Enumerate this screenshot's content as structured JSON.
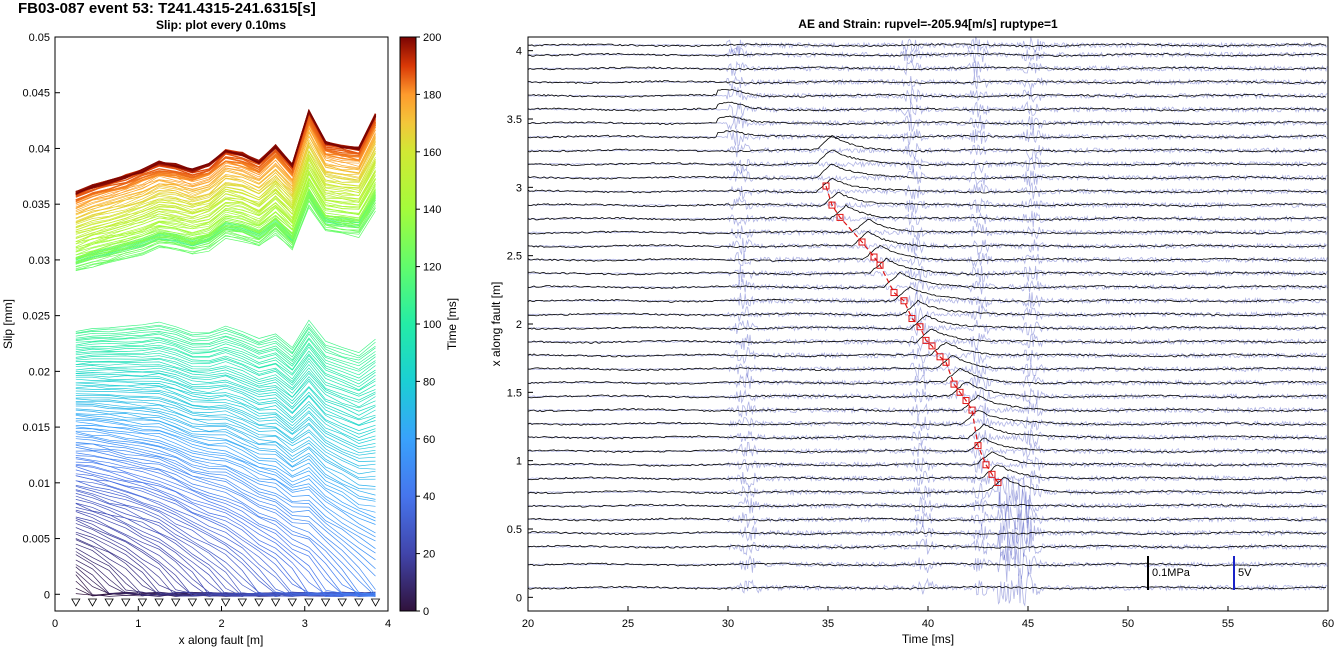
{
  "figure_title": "FB03-087 event 53: T241.4315-241.6315[s]",
  "chart_data": [
    {
      "type": "line",
      "title": "Slip: plot every 0.10ms",
      "xlabel": "x along fault [m]",
      "ylabel": "Slip [mm]",
      "xlim": [
        0,
        4
      ],
      "ylim": [
        -0.0015,
        0.05
      ],
      "xticks": [
        "0",
        "1",
        "2",
        "3",
        "4"
      ],
      "yticks": [
        "0",
        "0.005",
        "0.01",
        "0.015",
        "0.02",
        "0.025",
        "0.03",
        "0.035",
        "0.04",
        "0.045",
        "0.05"
      ],
      "grid": false,
      "x": [
        0.25,
        0.45,
        0.65,
        0.85,
        1.05,
        1.25,
        1.45,
        1.65,
        1.85,
        2.05,
        2.25,
        2.45,
        2.65,
        2.85,
        3.05,
        3.25,
        3.45,
        3.65,
        3.85
      ],
      "final_slip": [
        0.036,
        0.0366,
        0.037,
        0.0375,
        0.038,
        0.0387,
        0.0385,
        0.038,
        0.0385,
        0.0398,
        0.0395,
        0.0388,
        0.0402,
        0.0385,
        0.0433,
        0.0405,
        0.0402,
        0.04,
        0.043
      ],
      "sensor_markers_y": -0.001,
      "sensor_x": [
        0.25,
        0.45,
        0.65,
        0.85,
        1.05,
        1.25,
        1.45,
        1.65,
        1.85,
        2.05,
        2.25,
        2.45,
        2.65,
        2.85,
        3.05,
        3.25,
        3.45,
        3.65,
        3.85
      ],
      "colorbar": {
        "label": "Time [ms]",
        "range": [
          0,
          200
        ],
        "ticks": [
          "0",
          "20",
          "40",
          "60",
          "80",
          "100",
          "120",
          "140",
          "160",
          "180",
          "200"
        ],
        "colormap": "turbo"
      }
    },
    {
      "type": "line",
      "title": "AE and Strain: rupvel=-205.94[m/s] ruptype=1",
      "xlabel": "Time [ms]",
      "ylabel": "x along fault [m]",
      "xlim": [
        20,
        60
      ],
      "ylim": [
        -0.1,
        4.1
      ],
      "xticks": [
        "20",
        "25",
        "30",
        "35",
        "40",
        "45",
        "50",
        "55",
        "60"
      ],
      "yticks": [
        "0",
        "0.5",
        "1",
        "1.5",
        "2",
        "2.5",
        "3",
        "3.5",
        "4"
      ],
      "grid": false,
      "strain_trace_offsets_m": [
        0.07,
        0.24,
        0.37,
        0.47,
        0.57,
        0.67,
        0.77,
        0.87,
        0.97,
        1.07,
        1.17,
        1.27,
        1.37,
        1.47,
        1.57,
        1.67,
        1.77,
        1.87,
        1.97,
        2.07,
        2.17,
        2.27,
        2.37,
        2.47,
        2.57,
        2.67,
        2.77,
        2.87,
        2.97,
        3.07,
        3.17,
        3.27,
        3.37,
        3.47,
        3.57,
        3.67,
        3.77,
        3.87,
        3.97,
        4.04
      ],
      "ae_burst_times_ms": [
        30.5,
        38.8,
        42.2,
        44.9
      ],
      "rupture_picks": {
        "time_ms": [
          34.9,
          35.2,
          35.6,
          36.7,
          37.3,
          37.6,
          38.3,
          38.8,
          39.2,
          39.6,
          39.9,
          40.2,
          40.6,
          40.9,
          41.3,
          41.6,
          41.9,
          42.2,
          42.5,
          42.9,
          43.2,
          43.5
        ],
        "x_m": [
          3.01,
          2.87,
          2.78,
          2.6,
          2.49,
          2.43,
          2.23,
          2.17,
          2.04,
          1.98,
          1.88,
          1.84,
          1.76,
          1.72,
          1.56,
          1.5,
          1.44,
          1.37,
          1.11,
          0.97,
          0.9,
          0.84
        ]
      },
      "scale_bars": [
        {
          "label": "0.1MPa",
          "time_ms": 51.0,
          "color": "#000000"
        },
        {
          "label": "5V",
          "time_ms": 55.3,
          "color": "#1a22c8"
        }
      ],
      "colors": {
        "strain": "#000000",
        "ae": "#1f2bb5",
        "picks": "#e01515"
      }
    }
  ]
}
